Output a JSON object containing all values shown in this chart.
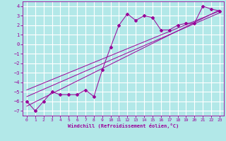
{
  "xlabel": "Windchill (Refroidissement éolien,°C)",
  "bg_color": "#b2e8e8",
  "grid_color": "#ffffff",
  "line_color": "#990099",
  "xlim": [
    -0.5,
    23.5
  ],
  "ylim": [
    -7.5,
    4.5
  ],
  "xticks": [
    0,
    1,
    2,
    3,
    4,
    5,
    6,
    7,
    8,
    9,
    10,
    11,
    12,
    13,
    14,
    15,
    16,
    17,
    18,
    19,
    20,
    21,
    22,
    23
  ],
  "yticks": [
    -7,
    -6,
    -5,
    -4,
    -3,
    -2,
    -1,
    0,
    1,
    2,
    3,
    4
  ],
  "scatter_x": [
    0,
    1,
    2,
    3,
    4,
    5,
    6,
    7,
    8,
    9,
    10,
    11,
    12,
    13,
    14,
    15,
    16,
    17,
    18,
    19,
    20,
    21,
    22,
    23
  ],
  "scatter_y": [
    -6.0,
    -7.0,
    -6.0,
    -5.0,
    -5.3,
    -5.3,
    -5.3,
    -4.8,
    -5.5,
    -2.7,
    -0.3,
    2.0,
    3.2,
    2.5,
    3.0,
    2.8,
    1.5,
    1.5,
    2.0,
    2.2,
    2.2,
    4.0,
    3.7,
    3.5
  ],
  "reg_lines": [
    {
      "x": [
        0,
        23
      ],
      "y": [
        -6.5,
        3.6
      ]
    },
    {
      "x": [
        0,
        23
      ],
      "y": [
        -5.5,
        3.3
      ]
    },
    {
      "x": [
        0,
        23
      ],
      "y": [
        -4.8,
        3.5
      ]
    }
  ]
}
